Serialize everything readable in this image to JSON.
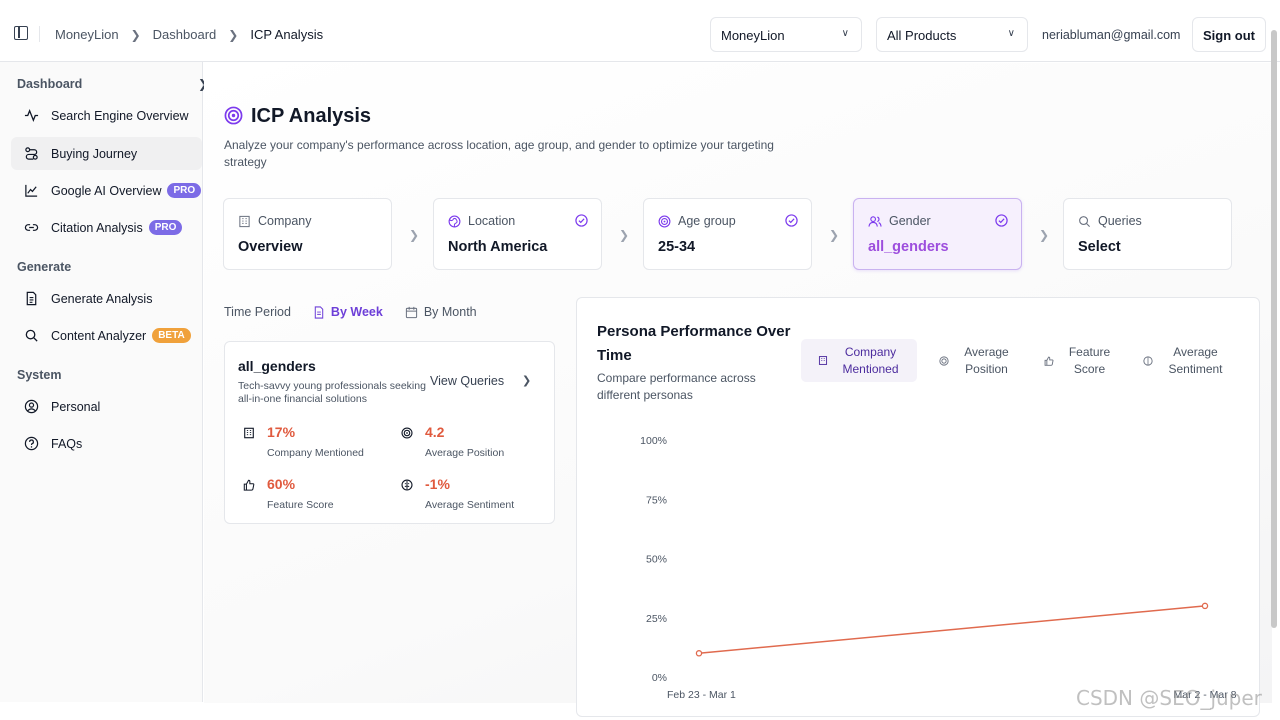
{
  "header": {
    "breadcrumbs": [
      "MoneyLion",
      "Dashboard",
      "ICP Analysis"
    ],
    "company_select": "MoneyLion",
    "product_select": "All Products",
    "email": "neriabluman@gmail.com",
    "sign_out": "Sign out"
  },
  "sidebar": {
    "sections": [
      {
        "heading": "Dashboard",
        "items": [
          {
            "label": "Search Engine Overview",
            "icon": "activity-icon"
          },
          {
            "label": "Buying Journey",
            "icon": "route-icon",
            "active": true
          },
          {
            "label": "Google AI Overview",
            "icon": "chart-line-icon",
            "badge": "PRO"
          },
          {
            "label": "Citation Analysis",
            "icon": "link-icon",
            "badge": "PRO"
          }
        ]
      },
      {
        "heading": "Generate",
        "items": [
          {
            "label": "Generate Analysis",
            "icon": "document-icon"
          },
          {
            "label": "Content Analyzer",
            "icon": "search-icon",
            "badge": "BETA"
          }
        ]
      },
      {
        "heading": "System",
        "items": [
          {
            "label": "Personal",
            "icon": "user-circle-icon"
          },
          {
            "label": "FAQs",
            "icon": "help-circle-icon"
          }
        ]
      }
    ]
  },
  "page": {
    "title": "ICP Analysis",
    "subtitle": "Analyze your company's performance across location, age group, and gender to optimize your targeting strategy"
  },
  "steps": [
    {
      "label": "Company",
      "value": "Overview",
      "icon": "building-icon",
      "checked": false
    },
    {
      "label": "Location",
      "value": "North America",
      "icon": "globe-icon",
      "checked": true
    },
    {
      "label": "Age group",
      "value": "25-34",
      "icon": "target-icon",
      "checked": true
    },
    {
      "label": "Gender",
      "value": "all_genders",
      "icon": "users-icon",
      "checked": true,
      "selected": true
    },
    {
      "label": "Queries",
      "value": "Select",
      "icon": "search-icon",
      "checked": false
    }
  ],
  "time_period": {
    "label": "Time Period",
    "options": [
      "By Week",
      "By Month"
    ],
    "selected": "By Week"
  },
  "persona": {
    "name": "all_genders",
    "description": "Tech-savvy young professionals seeking all-in-one financial solutions",
    "view_queries": "View Queries",
    "metrics": [
      {
        "value": "17%",
        "caption": "Company Mentioned",
        "icon": "building-icon"
      },
      {
        "value": "4.2",
        "caption": "Average Position",
        "icon": "target-icon"
      },
      {
        "value": "60%",
        "caption": "Feature Score",
        "icon": "thumbs-up-icon"
      },
      {
        "value": "-1%",
        "caption": "Average Sentiment",
        "icon": "sentiment-icon"
      }
    ]
  },
  "chart": {
    "title": "Persona Performance Over Time",
    "subtitle": "Compare performance across different personas",
    "tabs": [
      "Company Mentioned",
      "Average Position",
      "Feature Score",
      "Average Sentiment"
    ],
    "active_tab": "Company Mentioned",
    "line_color": "#e06a4e"
  },
  "chart_data": {
    "type": "line",
    "title": "Persona Performance Over Time",
    "categories": [
      "Feb 23 - Mar 1",
      "Mar 2 - Mar 8"
    ],
    "series": [
      {
        "name": "all_genders",
        "values": [
          10,
          30
        ]
      }
    ],
    "ylim": [
      0,
      100
    ],
    "yticks": [
      "0%",
      "25%",
      "50%",
      "75%",
      "100%"
    ],
    "ytick_values": [
      0,
      25,
      50,
      75,
      100
    ],
    "xlabel": "",
    "ylabel": ""
  },
  "watermark": "CSDN @SEO_juper"
}
